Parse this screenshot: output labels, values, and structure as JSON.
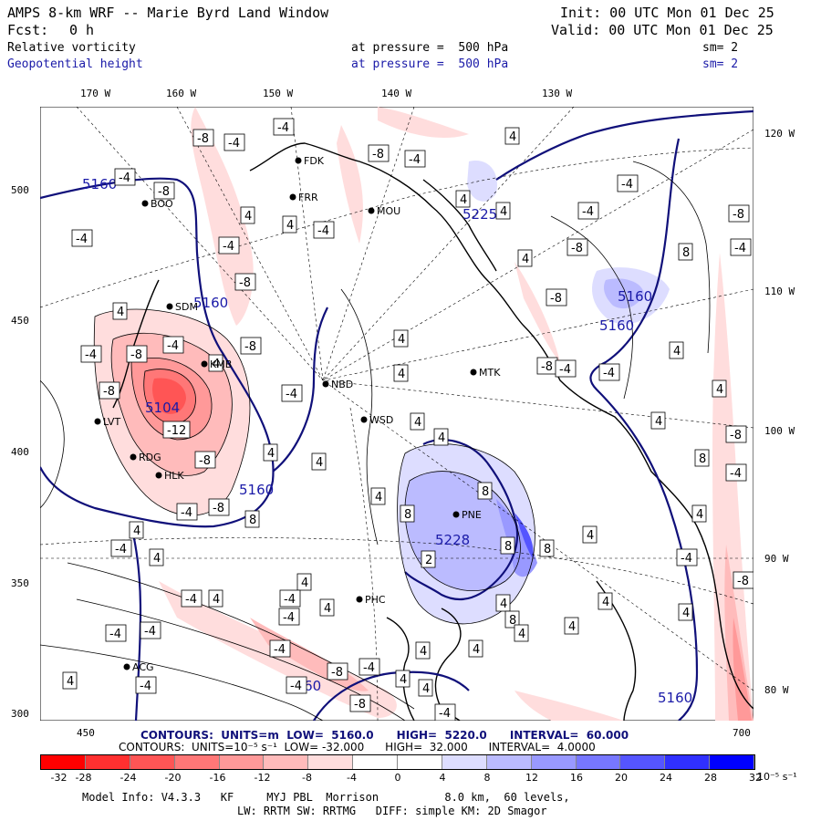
{
  "header": {
    "title": "AMPS 8-km WRF -- Marie Byrd Land Window",
    "init": "Init: 00 UTC Mon 01 Dec 25",
    "fcst_label": "Fcst:",
    "fcst_value": "0 h",
    "valid": "Valid: 00 UTC Mon 01 Dec 25",
    "field1": {
      "name": "Relative vorticity",
      "level": "at pressure =  500 hPa",
      "smooth": "sm= 2"
    },
    "field2": {
      "name": "Geopotential height",
      "level": "at pressure =  500 hPa",
      "smooth": "sm= 2"
    }
  },
  "axes": {
    "top_lon": [
      "170 W",
      "160 W",
      "150 W",
      "140 W",
      "130 W"
    ],
    "right_lon": [
      "120 W",
      "110 W",
      "100 W",
      "90 W",
      "80 W"
    ],
    "left_y": [
      "500",
      "450",
      "400",
      "350",
      "300"
    ],
    "bottom_x": [
      "450",
      "700"
    ]
  },
  "stations": [
    "FDK",
    "FRR",
    "MOU",
    "BOO",
    "SDM",
    "KMB",
    "NBD",
    "LVT",
    "RDG",
    "HLK",
    "WSD",
    "MTK",
    "PNE",
    "PHC",
    "ACG"
  ],
  "contour_info": {
    "line1": "CONTOURS:  UNITS=m  LOW=  5160.0      HIGH=  5220.0      INTERVAL=  60.000",
    "line2": "CONTOURS:  UNITS=10⁻⁵ s⁻¹  LOW= -32.000      HIGH=  32.000      INTERVAL=  4.0000"
  },
  "colorbar": {
    "colors": [
      "#ff0000",
      "#ff3030",
      "#ff5555",
      "#ff7777",
      "#ff9999",
      "#ffbbbb",
      "#ffdddd",
      "#ffffff",
      "#ffffff",
      "#ddddff",
      "#bbbbff",
      "#9999ff",
      "#7777ff",
      "#5555ff",
      "#3030ff",
      "#0000ff"
    ],
    "ticks": [
      "-32",
      "-28",
      "-24",
      "-20",
      "-16",
      "-12",
      "-8",
      "-4",
      "0",
      "4",
      "8",
      "12",
      "16",
      "20",
      "24",
      "28",
      "32"
    ],
    "unit": "10⁻⁵ s⁻¹"
  },
  "footer": {
    "line1": "Model Info: V4.3.3   KF     MYJ PBL  Morrison          8.0 km,  60 levels,",
    "line2": "LW: RRTM SW: RRTMG   DIFF: simple KM: 2D Smagor"
  }
}
